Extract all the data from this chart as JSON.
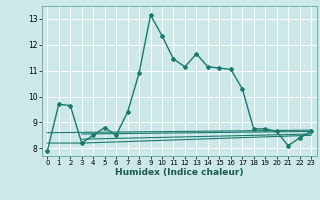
{
  "xlabel": "Humidex (Indice chaleur)",
  "bg_color": "#cce8e8",
  "grid_color": "#ffffff",
  "line_color": "#1a7a6e",
  "xlim": [
    -0.5,
    23.5
  ],
  "ylim": [
    7.7,
    13.5
  ],
  "xticks": [
    0,
    1,
    2,
    3,
    4,
    5,
    6,
    7,
    8,
    9,
    10,
    11,
    12,
    13,
    14,
    15,
    16,
    17,
    18,
    19,
    20,
    21,
    22,
    23
  ],
  "yticks": [
    8,
    9,
    10,
    11,
    12,
    13
  ],
  "main_series": [
    [
      0,
      7.9
    ],
    [
      1,
      9.7
    ],
    [
      2,
      9.65
    ],
    [
      3,
      8.2
    ],
    [
      4,
      8.5
    ],
    [
      5,
      8.8
    ],
    [
      6,
      8.5
    ],
    [
      7,
      9.4
    ],
    [
      8,
      10.9
    ],
    [
      9,
      13.15
    ],
    [
      10,
      12.35
    ],
    [
      11,
      11.45
    ],
    [
      12,
      11.15
    ],
    [
      13,
      11.65
    ],
    [
      14,
      11.15
    ],
    [
      15,
      11.1
    ],
    [
      16,
      11.05
    ],
    [
      17,
      10.3
    ],
    [
      18,
      8.75
    ],
    [
      19,
      8.75
    ],
    [
      20,
      8.65
    ],
    [
      21,
      8.1
    ],
    [
      22,
      8.4
    ],
    [
      23,
      8.65
    ]
  ],
  "flat_series_1": [
    [
      0,
      8.6
    ],
    [
      23,
      8.7
    ]
  ],
  "flat_series_2": [
    [
      0,
      8.2
    ],
    [
      3,
      8.2
    ],
    [
      23,
      8.5
    ]
  ],
  "flat_series_3": [
    [
      3,
      8.55
    ],
    [
      23,
      8.65
    ]
  ],
  "flat_series_4": [
    [
      3,
      8.35
    ],
    [
      23,
      8.55
    ]
  ]
}
